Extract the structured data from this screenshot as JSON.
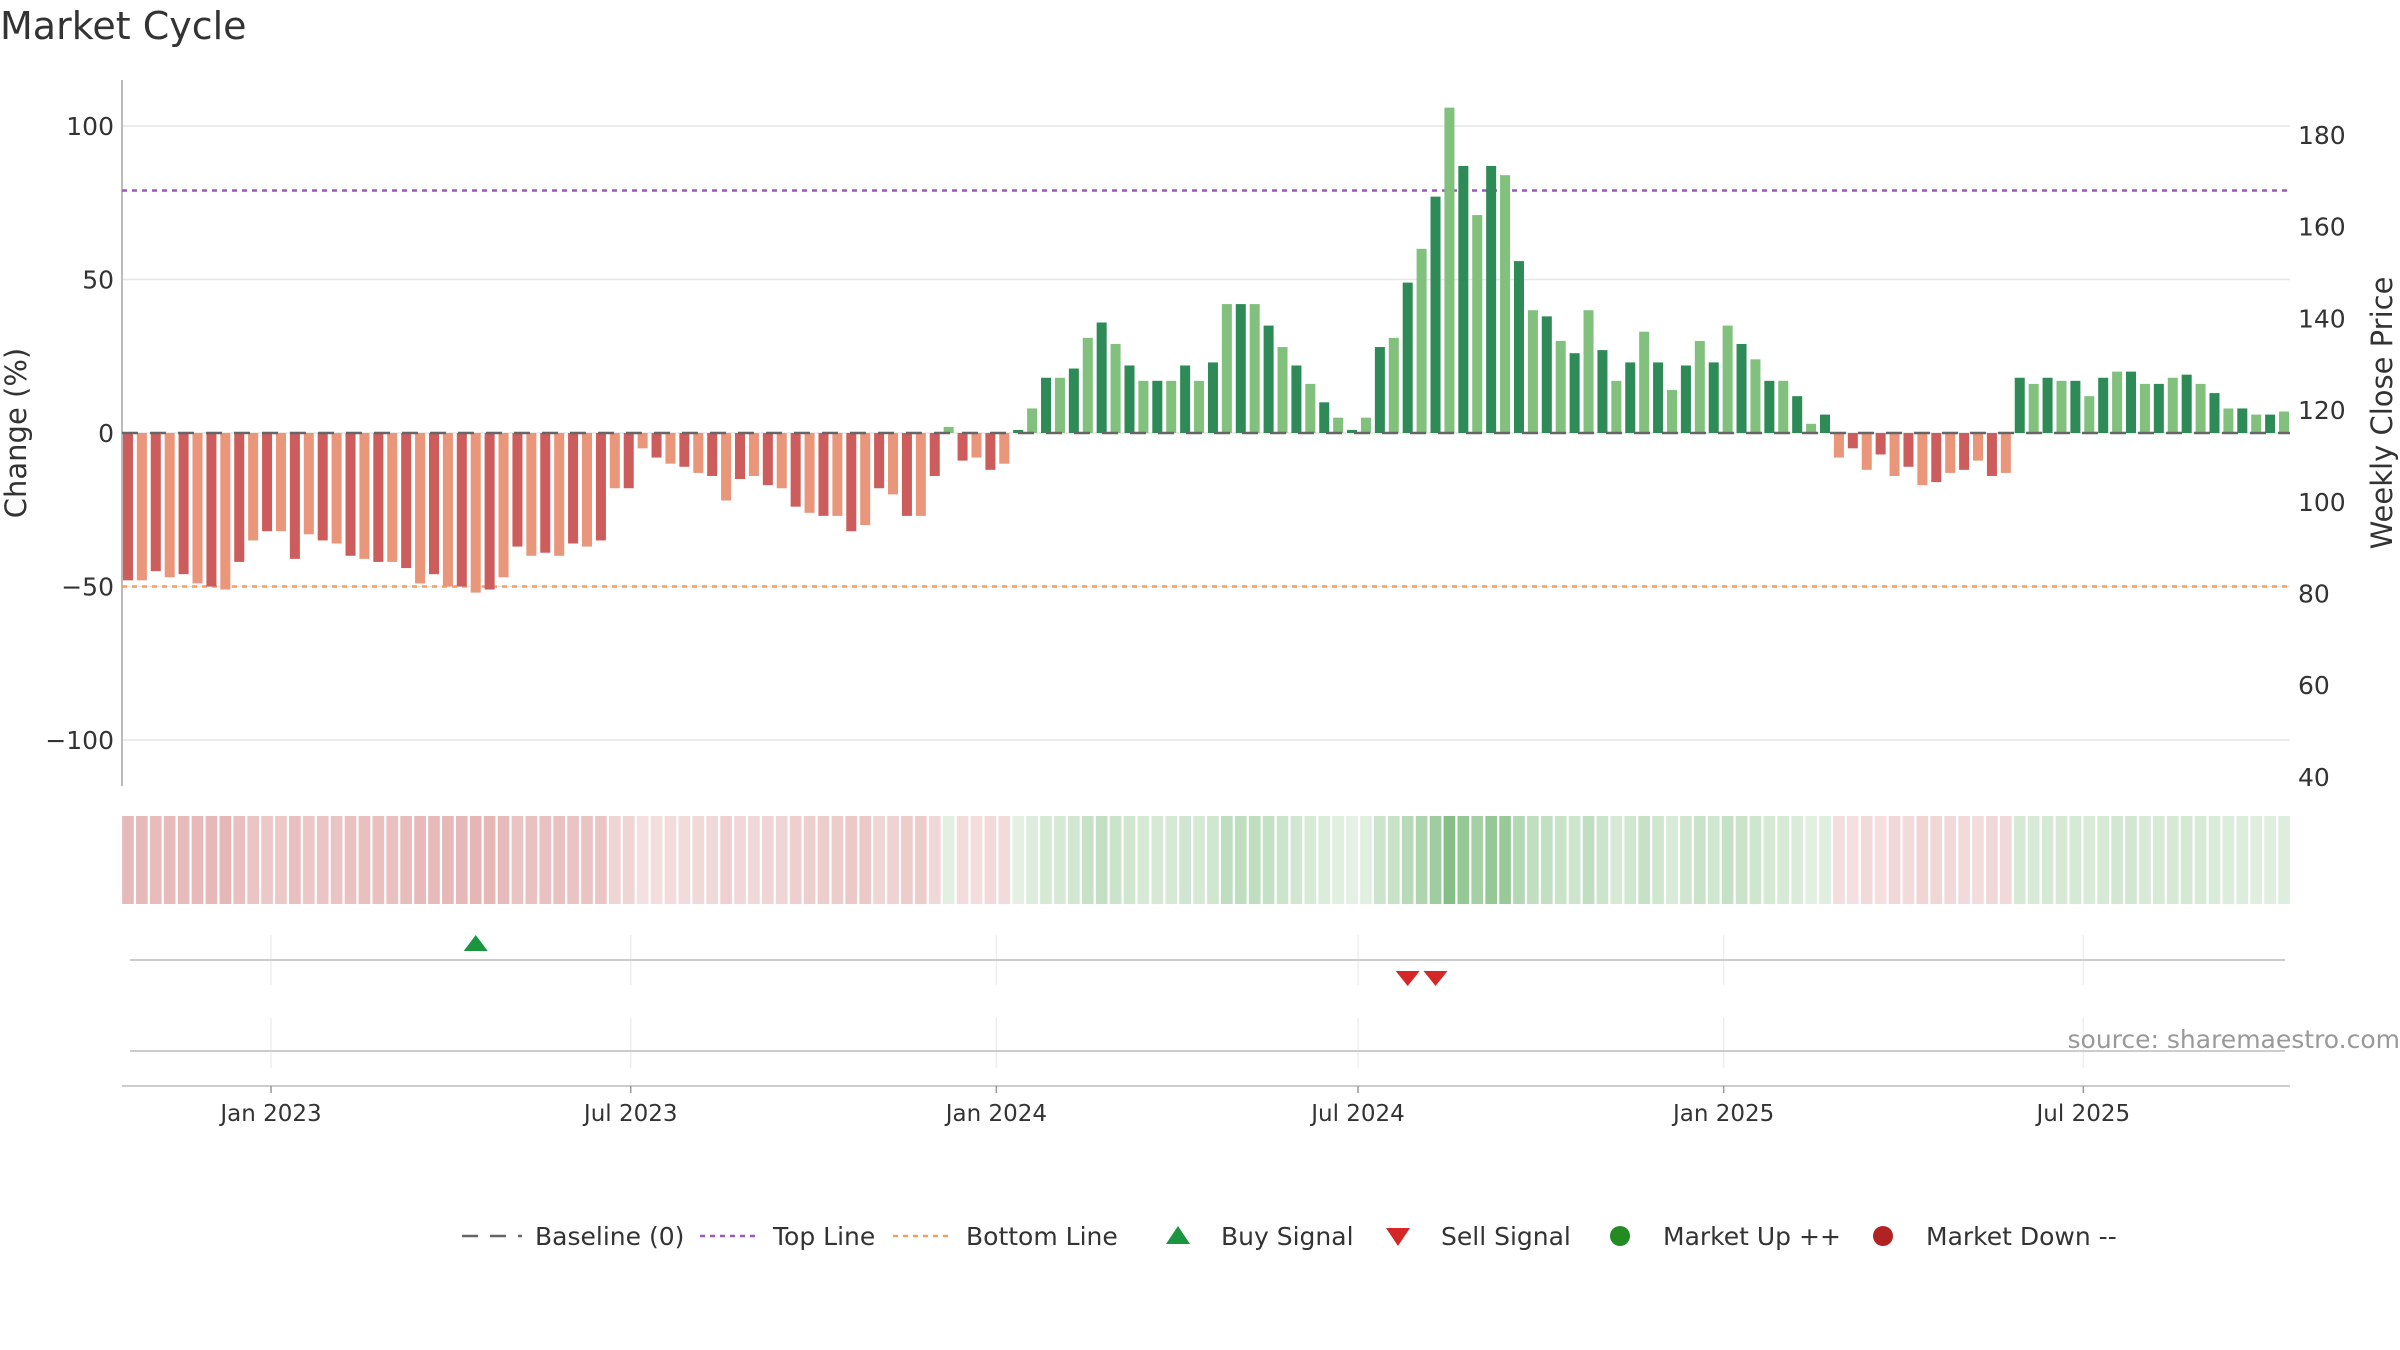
{
  "title": "Market Cycle",
  "source_text": "source: sharemaestro.com",
  "colors": {
    "up_strong": "#2e8b57",
    "up_light": "#82c07e",
    "down_strong": "#cd5c5c",
    "down_light": "#e9967a",
    "top_line": "#9b59b6",
    "bottom_line": "#f0a060",
    "baseline": "#666666",
    "buy": "#1a9641",
    "sell": "#d62728",
    "market_up": "#228b22",
    "market_down": "#b22222"
  },
  "chart_data": {
    "type": "bar",
    "ylabel": "Change (%)",
    "y2label": "Weekly Close Price",
    "ylim": [
      -115,
      115
    ],
    "y2lim": [
      38,
      192
    ],
    "yticks": [
      -100,
      -50,
      0,
      50,
      100
    ],
    "ytick_labels": [
      "−100",
      "−50",
      "0",
      "50",
      "100"
    ],
    "y2ticks": [
      40,
      60,
      80,
      100,
      120,
      140,
      160,
      180
    ],
    "y2tick_labels": [
      "40",
      "60",
      "80",
      "100",
      "120",
      "140",
      "160",
      "180"
    ],
    "top_line": 79,
    "bottom_line": -50,
    "x_start": "2022-10-21",
    "week_days": 7,
    "xticks": [
      "2023-01-01",
      "2023-07-01",
      "2024-01-01",
      "2024-07-01",
      "2025-01-01",
      "2025-07-01"
    ],
    "xtick_labels": [
      "Jan 2023",
      "Jul 2023",
      "Jan 2024",
      "Jul 2024",
      "Jan 2025",
      "Jul 2025"
    ],
    "values": [
      -48,
      -48,
      -45,
      -47,
      -46,
      -49,
      -50,
      -51,
      -42,
      -35,
      -32,
      -32,
      -41,
      -33,
      -35,
      -36,
      -40,
      -41,
      -42,
      -42,
      -44,
      -49,
      -46,
      -50,
      -50,
      -52,
      -51,
      -47,
      -37,
      -40,
      -39,
      -40,
      -36,
      -37,
      -35,
      -18,
      -18,
      -5,
      -8,
      -10,
      -11,
      -13,
      -14,
      -22,
      -15,
      -14,
      -17,
      -18,
      -24,
      -26,
      -27,
      -27,
      -32,
      -30,
      -18,
      -20,
      -27,
      -27,
      -14,
      2,
      -9,
      -8,
      -12,
      -10,
      1,
      8,
      18,
      18,
      21,
      31,
      36,
      29,
      22,
      17,
      17,
      17,
      22,
      17,
      23,
      42,
      42,
      42,
      35,
      28,
      22,
      16,
      10,
      5,
      1,
      5,
      28,
      31,
      49,
      60,
      77,
      106,
      87,
      71,
      87,
      84,
      56,
      40,
      38,
      30,
      26,
      40,
      27,
      17,
      23,
      33,
      23,
      14,
      22,
      30,
      23,
      35,
      29,
      24,
      17,
      17,
      12,
      3,
      6,
      -8,
      -5,
      -12,
      -7,
      -14,
      -11,
      -17,
      -16,
      -13,
      -12,
      -9,
      -14,
      -13,
      18,
      16,
      18,
      17,
      17,
      12,
      18,
      20,
      20,
      16,
      16,
      18,
      19,
      16,
      13,
      8,
      8,
      6,
      6,
      7
    ],
    "strip_values": [
      -48,
      -48,
      -45,
      -47,
      -46,
      -49,
      -50,
      -51,
      -42,
      -35,
      -32,
      -32,
      -41,
      -33,
      -35,
      -36,
      -40,
      -41,
      -42,
      -42,
      -44,
      -49,
      -46,
      -50,
      -50,
      -52,
      -51,
      -47,
      -37,
      -40,
      -39,
      -40,
      -36,
      -37,
      -35,
      -18,
      -18,
      -5,
      -8,
      -10,
      -11,
      -13,
      -14,
      -22,
      -15,
      -14,
      -17,
      -18,
      -24,
      -26,
      -27,
      -27,
      -32,
      -30,
      -18,
      -20,
      -27,
      -27,
      -14,
      2,
      -9,
      -8,
      -12,
      -10,
      1,
      8,
      18,
      18,
      21,
      31,
      36,
      29,
      22,
      17,
      17,
      17,
      22,
      17,
      23,
      42,
      42,
      42,
      35,
      28,
      22,
      16,
      10,
      5,
      1,
      5,
      28,
      31,
      49,
      60,
      77,
      106,
      87,
      71,
      87,
      84,
      56,
      40,
      38,
      30,
      26,
      40,
      27,
      17,
      23,
      33,
      23,
      14,
      22,
      30,
      23,
      35,
      29,
      24,
      17,
      17,
      12,
      3,
      6,
      -8,
      -5,
      -12,
      -7,
      -14,
      -11,
      -17,
      -16,
      -13,
      -12,
      -9,
      -14,
      -13,
      18,
      16,
      18,
      17,
      17,
      12,
      18,
      20,
      20,
      16,
      16,
      18,
      19,
      16,
      13,
      8,
      8,
      6,
      6,
      7
    ],
    "buy_signals": [
      "2023-04-14"
    ],
    "sell_signals": [
      "2024-07-26",
      "2024-08-09"
    ],
    "legend": [
      "Baseline (0)",
      "Top Line",
      "Bottom Line",
      "Buy Signal",
      "Sell Signal",
      "Market Up ++",
      "Market Down --"
    ],
    "legend_placement": "bottom-center",
    "grid": true
  }
}
